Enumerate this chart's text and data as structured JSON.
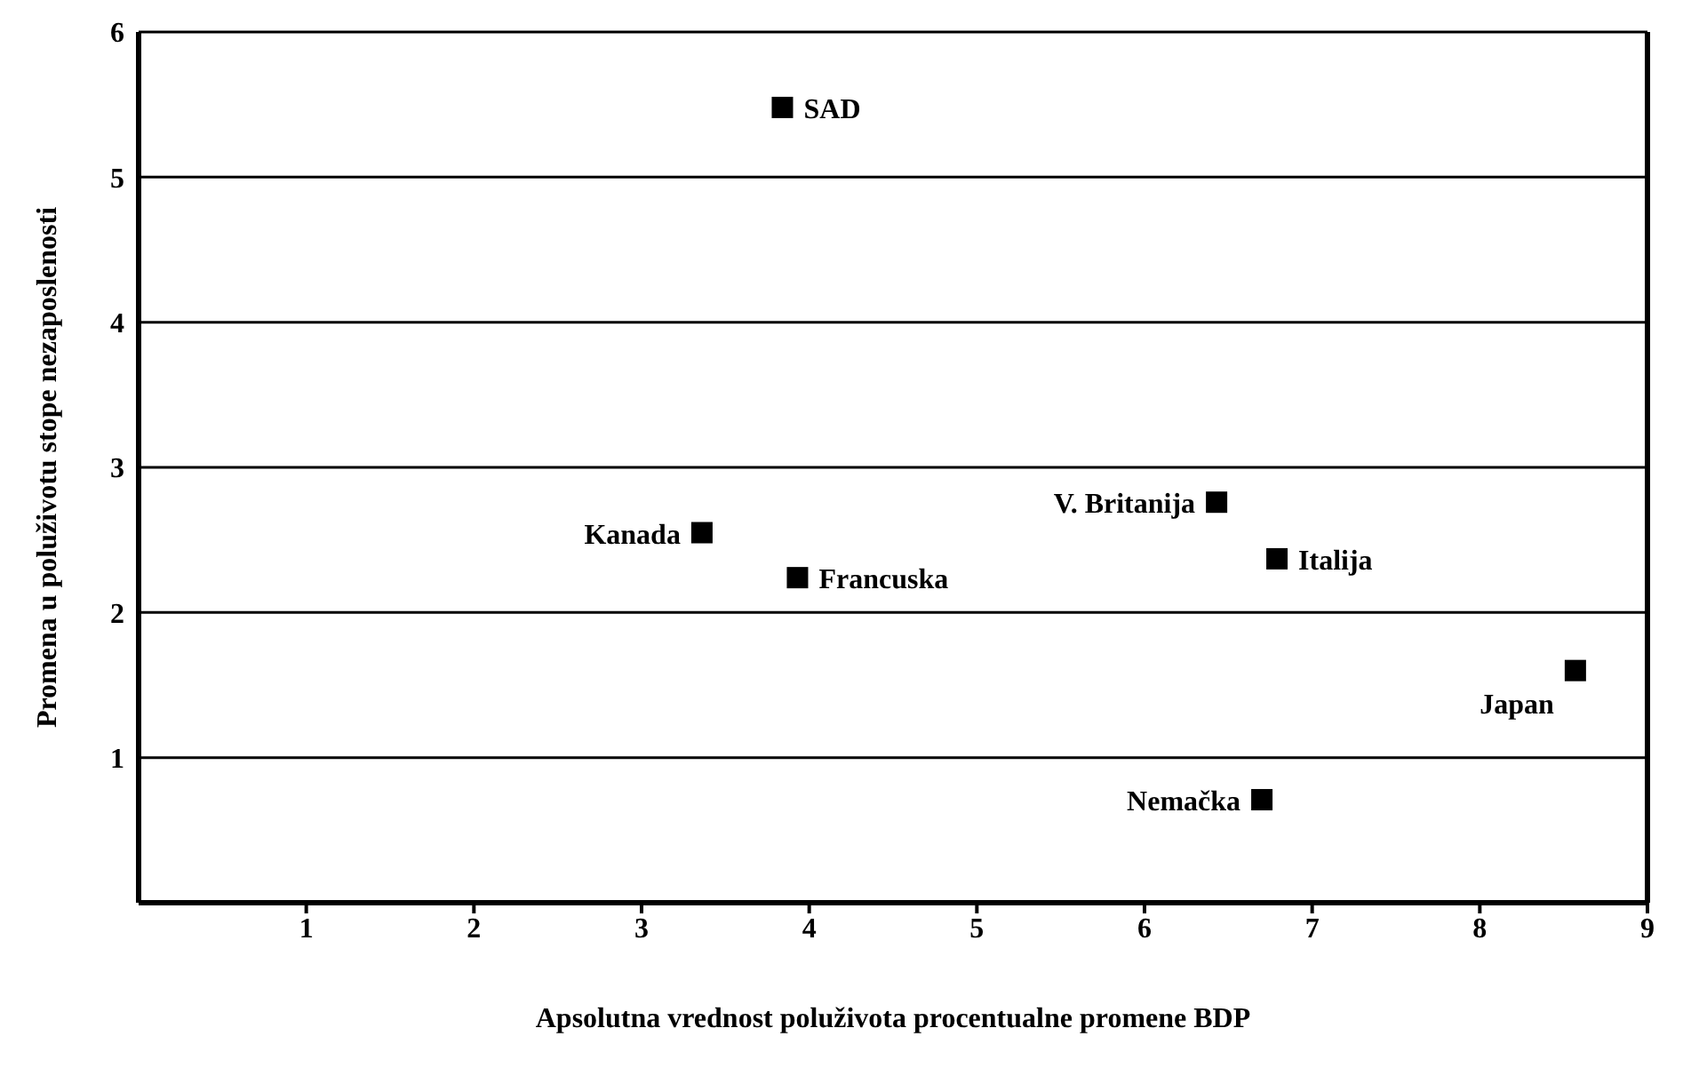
{
  "chart_data": {
    "type": "scatter",
    "xlabel": "Apsolutna vrednost poluživota procentualne promene BDP",
    "ylabel": "Promena u poluživotu stope nezaposlenosti",
    "x": [
      3.84,
      3.36,
      3.93,
      6.43,
      6.79,
      8.57,
      6.7
    ],
    "series": [
      {
        "color": "#000000",
        "values": [
          5.48,
          2.55,
          2.24,
          2.76,
          2.37,
          1.6,
          0.71
        ]
      }
    ],
    "annotations": [
      {
        "text": "SAD",
        "x": 3.84,
        "y": 5.48
      },
      {
        "text": "Kanada",
        "x": 3.36,
        "y": 2.55
      },
      {
        "text": "Francuska",
        "x": 3.93,
        "y": 2.24
      },
      {
        "text": "V. Britanija",
        "x": 6.43,
        "y": 2.76
      },
      {
        "text": "Italija",
        "x": 6.79,
        "y": 2.37
      },
      {
        "text": "Japan",
        "x": 8.57,
        "y": 1.6
      },
      {
        "text": "Nemačka",
        "x": 6.7,
        "y": 0.71
      }
    ],
    "xlim": [
      0,
      9
    ],
    "xticks": [
      1,
      2,
      3,
      4,
      5,
      6,
      7,
      8,
      9
    ],
    "ylim": [
      0,
      6
    ],
    "yticks": [
      1,
      2,
      3,
      4,
      5,
      6
    ],
    "grid": "y",
    "marker": "square",
    "legend": false
  }
}
